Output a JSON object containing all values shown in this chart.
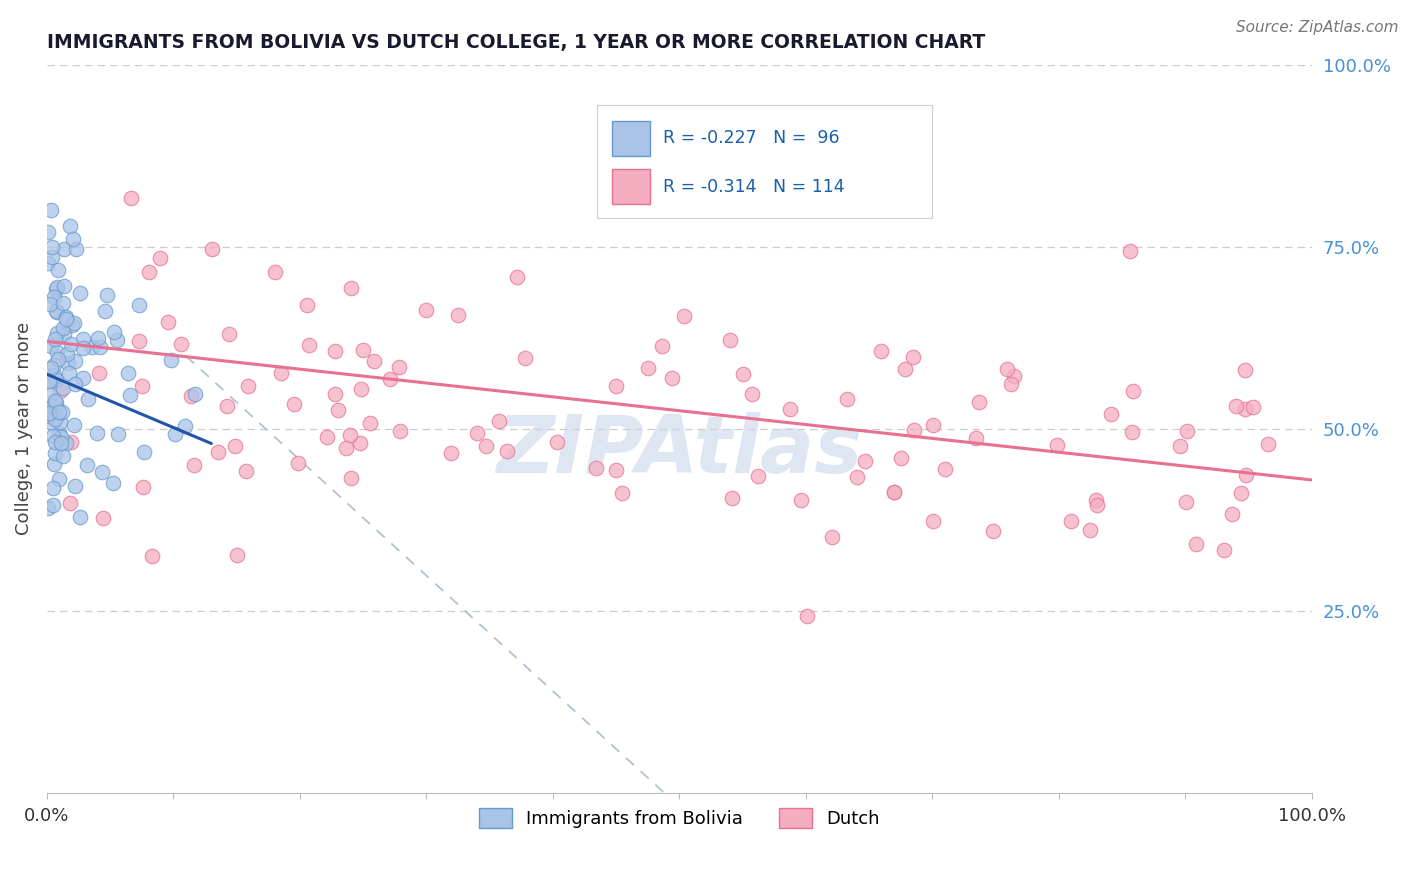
{
  "title": "IMMIGRANTS FROM BOLIVIA VS DUTCH COLLEGE, 1 YEAR OR MORE CORRELATION CHART",
  "source_text": "Source: ZipAtlas.com",
  "ylabel": "College, 1 year or more",
  "xlim": [
    0.0,
    1.0
  ],
  "ylim": [
    0.0,
    1.0
  ],
  "bolivia_color": "#6699cc",
  "bolivia_face_color": "#aac4e8",
  "dutch_color": "#e87090",
  "dutch_face_color": "#f4aec0",
  "grid_color": "#cccccc",
  "background_color": "#ffffff",
  "watermark_text": "ZIPAtlas",
  "watermark_color": "#c8d8e8",
  "title_color": "#1a1a2e",
  "source_color": "#777777",
  "right_tick_color": "#4a90d9",
  "bolivia_r": -0.227,
  "bolivia_n": 96,
  "dutch_r": -0.314,
  "dutch_n": 114,
  "bolivia_line_x0": 0.0,
  "bolivia_line_y0": 0.575,
  "bolivia_line_x1": 0.13,
  "bolivia_line_y1": 0.48,
  "dutch_line_x0": 0.0,
  "dutch_line_y0": 0.62,
  "dutch_line_x1": 1.0,
  "dutch_line_y1": 0.43,
  "dash_line_x0": 0.13,
  "dash_line_y0": 0.6,
  "dash_line_x1": 0.5,
  "dash_line_y1": 0.0
}
